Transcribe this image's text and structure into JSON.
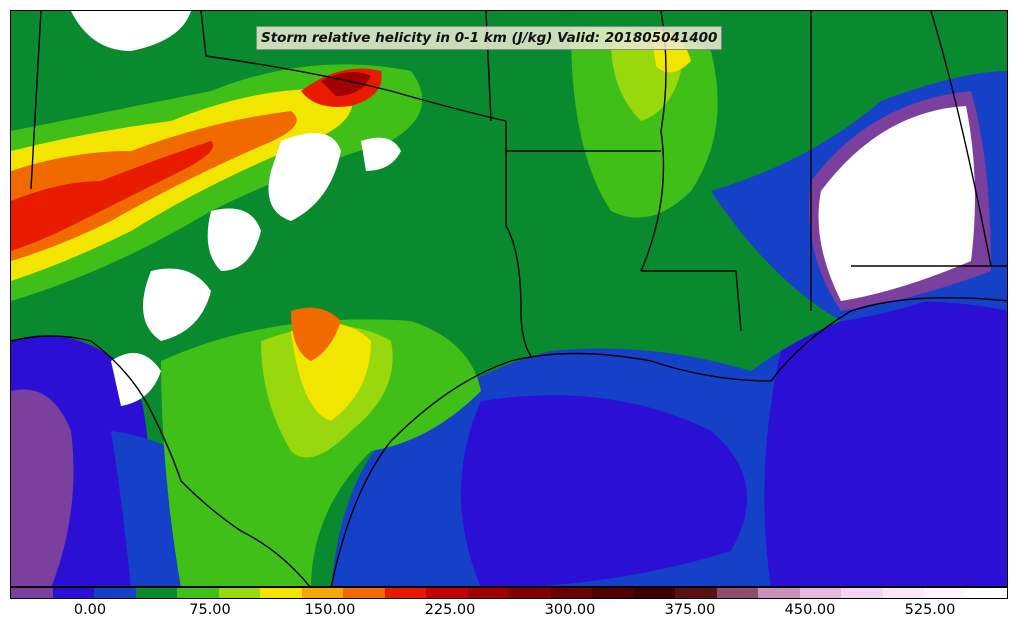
{
  "title": "Storm relative helicity in 0-1 km (J/kg) Valid: 201805041400",
  "colorbar": {
    "colors": [
      "#7b3f9e",
      "#2b0fd4",
      "#1540c8",
      "#0a8a2e",
      "#3fbf18",
      "#9ad80e",
      "#f2e600",
      "#f5a800",
      "#f06a00",
      "#e81a00",
      "#c40000",
      "#a00000",
      "#820000",
      "#6a0000",
      "#500000",
      "#3a0000",
      "#5a1010",
      "#8b4f6a",
      "#c892b8",
      "#e8b8e0",
      "#f4d4f0",
      "#fae8f8",
      "#fff4ff",
      "#ffffff"
    ],
    "ticks": [
      "0.00",
      "75.00",
      "150.00",
      "225.00",
      "300.00",
      "375.00",
      "450.00",
      "525.00"
    ]
  },
  "map": {
    "legend_colors": {
      "white": "#ffffff",
      "purple": "#7b3f9e",
      "blue": "#2b0fd4",
      "medblue": "#1540c8",
      "darkgreen": "#0a8a2e",
      "green": "#3fbf18",
      "lightgreen": "#9ad80e",
      "yellow": "#f2e600",
      "orange": "#f5a800",
      "darkorange": "#f06a00",
      "red": "#e81a00",
      "darkred": "#a00000"
    }
  }
}
